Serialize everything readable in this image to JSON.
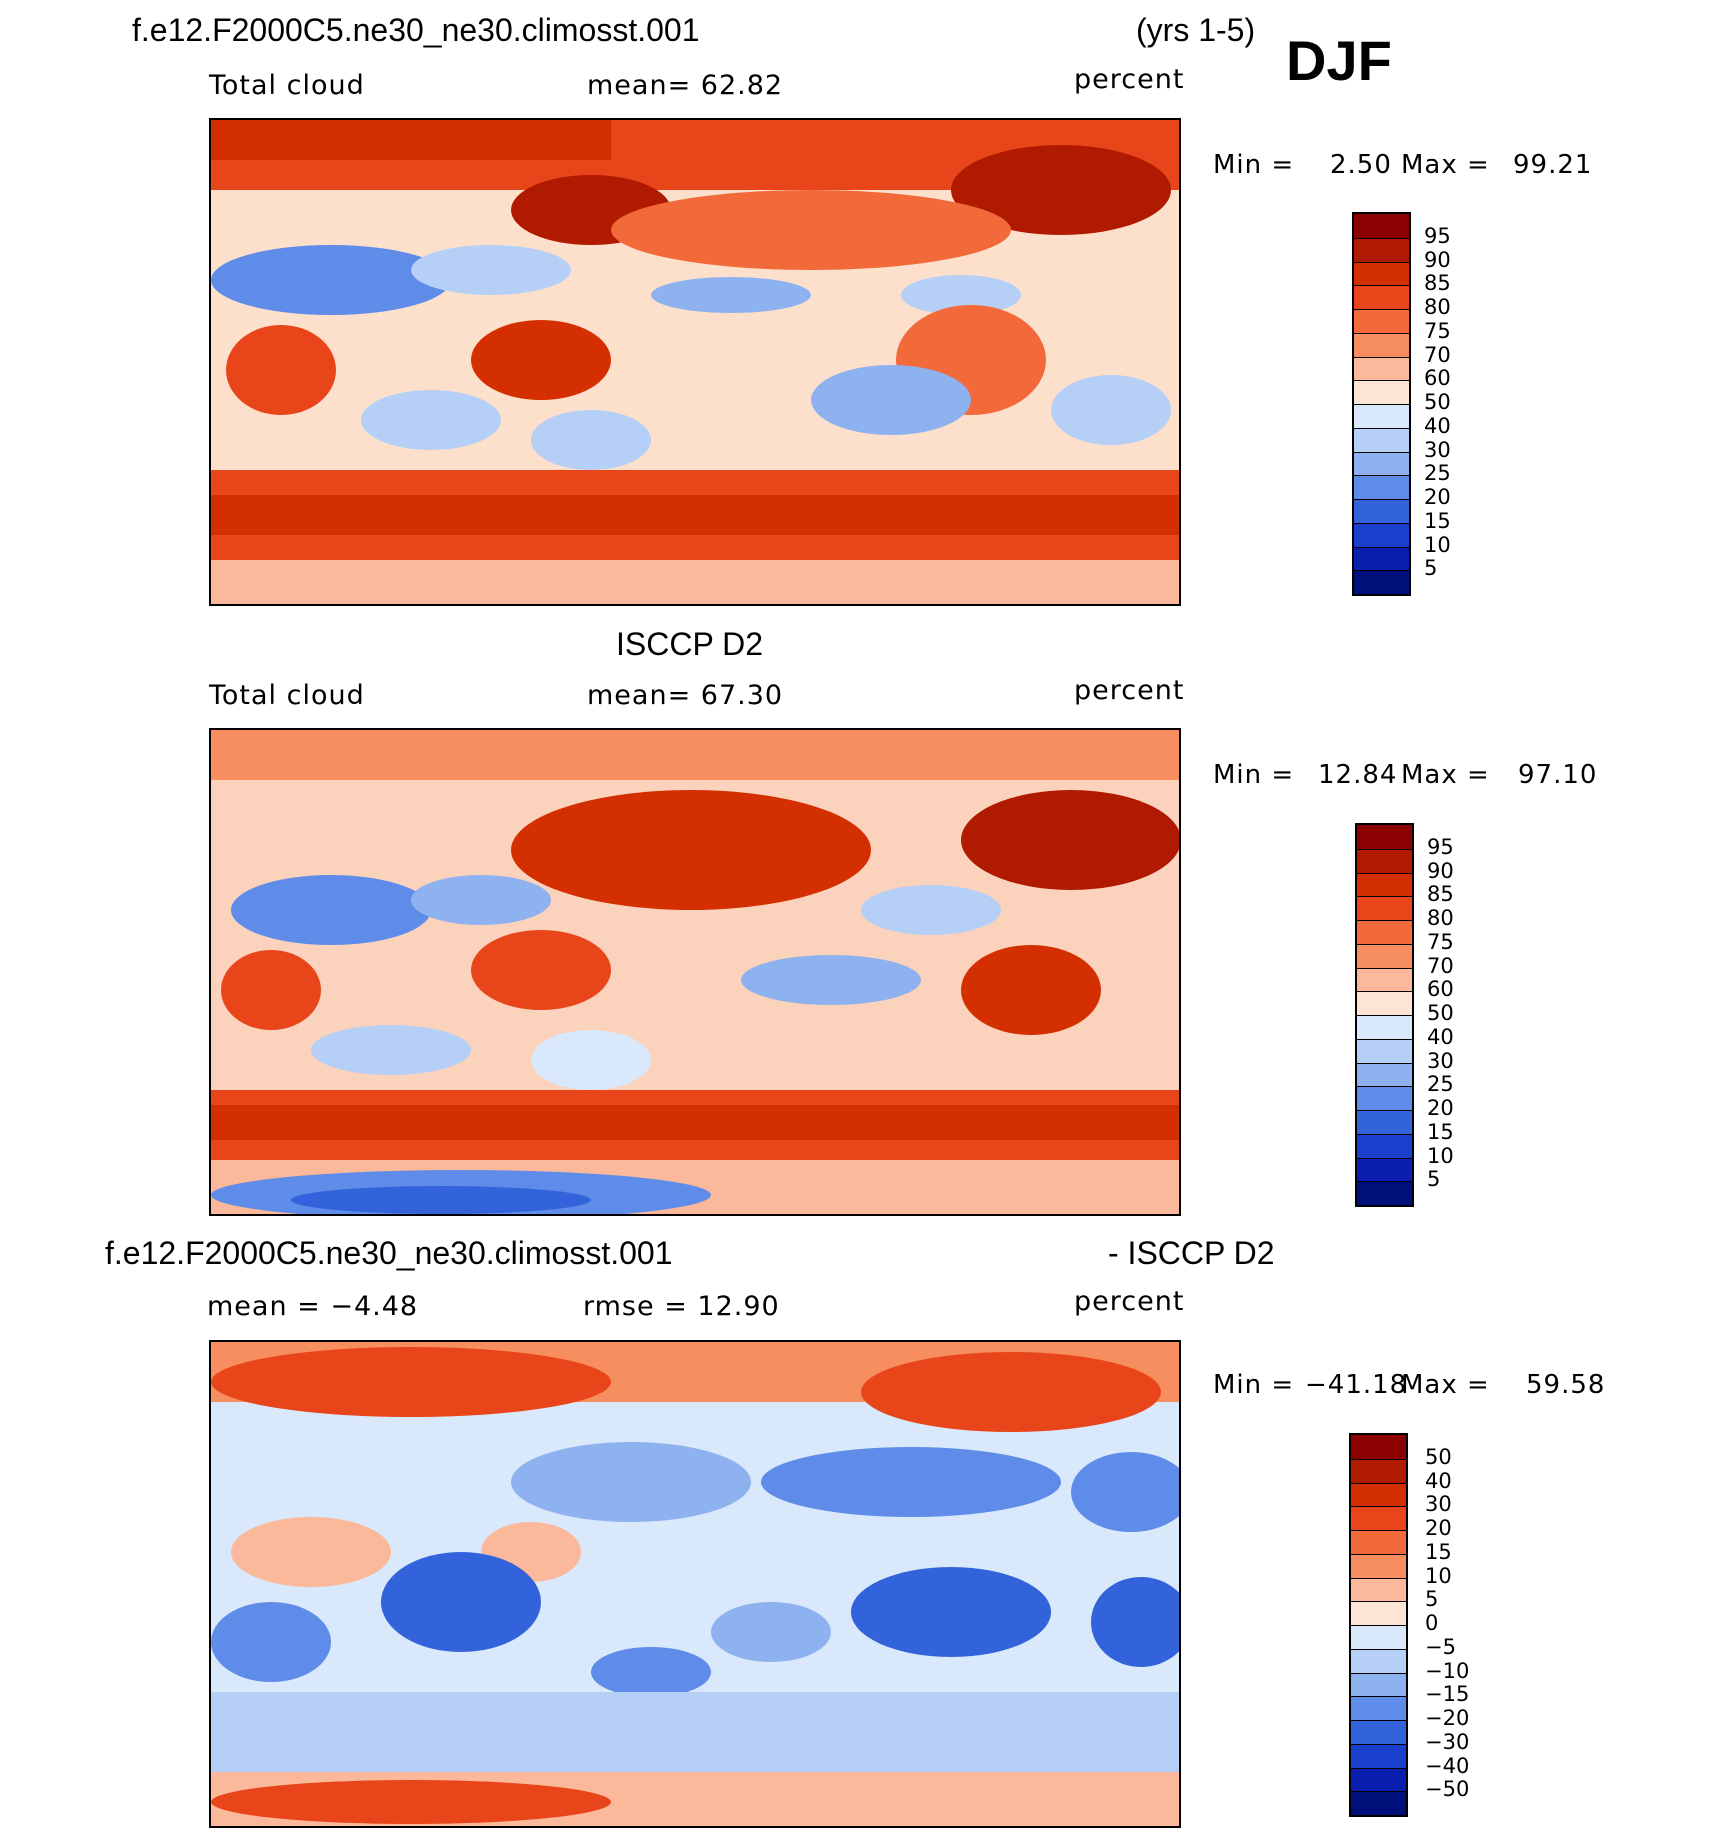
{
  "header": {
    "case_name": "f.e12.F2000C5.ne30_ne30.climosst.001",
    "years": "(yrs 1-5)",
    "season": "DJF"
  },
  "panel_model": {
    "variable": "Total cloud",
    "stat": "mean=   62.82",
    "units": "percent",
    "min_label": "Min =",
    "min_value": "2.50",
    "max_label": "Max =",
    "max_value": "99.21"
  },
  "panel_obs": {
    "title": "ISCCP D2",
    "variable": "Total cloud",
    "stat": "mean=   67.30",
    "units": "percent",
    "min_label": "Min =",
    "min_value": "12.84",
    "max_label": "Max =",
    "max_value": "97.10"
  },
  "panel_diff": {
    "title_left": "f.e12.F2000C5.ne30_ne30.climosst.001",
    "title_right": "- ISCCP D2",
    "stat_mean": "mean =   −4.48",
    "stat_rmse": "rmse =   12.90",
    "units": "percent",
    "min_label": "Min =",
    "min_value": "−41.18",
    "max_label": "Max =",
    "max_value": "59.58"
  },
  "colorbar_abs": {
    "labels": [
      "95",
      "90",
      "85",
      "80",
      "75",
      "70",
      "60",
      "50",
      "40",
      "30",
      "25",
      "20",
      "15",
      "10",
      "5"
    ],
    "colors": [
      "#8b0000",
      "#b01a00",
      "#d42f00",
      "#e8451a",
      "#f26a3a",
      "#f78e5f",
      "#fbb89a",
      "#fde5d6",
      "#d9e8fa",
      "#b5cff6",
      "#8eb2f0",
      "#5f8ce8",
      "#3363db",
      "#1a3fcc",
      "#0a1fb0",
      "#00107a"
    ]
  },
  "colorbar_diff": {
    "labels": [
      "50",
      "40",
      "30",
      "20",
      "15",
      "10",
      "5",
      "0",
      "−5",
      "−10",
      "−15",
      "−20",
      "−30",
      "−40",
      "−50"
    ],
    "colors": [
      "#8b0000",
      "#b01a00",
      "#d42f00",
      "#e8451a",
      "#f26a3a",
      "#f78e5f",
      "#fbb89a",
      "#fde5d6",
      "#d9e8fa",
      "#b5cff6",
      "#8eb2f0",
      "#5f8ce8",
      "#3363db",
      "#1a3fcc",
      "#0a1fb0",
      "#00107a"
    ]
  }
}
